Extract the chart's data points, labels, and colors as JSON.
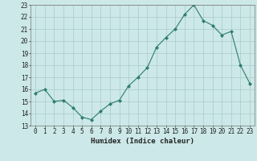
{
  "x": [
    0,
    1,
    2,
    3,
    4,
    5,
    6,
    7,
    8,
    9,
    10,
    11,
    12,
    13,
    14,
    15,
    16,
    17,
    18,
    19,
    20,
    21,
    22,
    23
  ],
  "y": [
    15.7,
    16.0,
    15.0,
    15.1,
    14.5,
    13.7,
    13.5,
    14.2,
    14.8,
    15.1,
    16.3,
    17.0,
    17.8,
    19.5,
    20.3,
    21.0,
    22.2,
    23.0,
    21.7,
    21.3,
    20.5,
    20.8,
    18.0,
    16.5
  ],
  "line_color": "#2e7d6e",
  "marker": "D",
  "marker_size": 2.0,
  "bg_color": "#cce8e8",
  "grid_color": "#aacaca",
  "xlabel": "Humidex (Indice chaleur)",
  "ylim": [
    13,
    23
  ],
  "xlim": [
    -0.5,
    23.5
  ],
  "yticks": [
    13,
    14,
    15,
    16,
    17,
    18,
    19,
    20,
    21,
    22,
    23
  ],
  "xticks": [
    0,
    1,
    2,
    3,
    4,
    5,
    6,
    7,
    8,
    9,
    10,
    11,
    12,
    13,
    14,
    15,
    16,
    17,
    18,
    19,
    20,
    21,
    22,
    23
  ],
  "tick_fontsize": 5.5,
  "xlabel_fontsize": 6.5
}
